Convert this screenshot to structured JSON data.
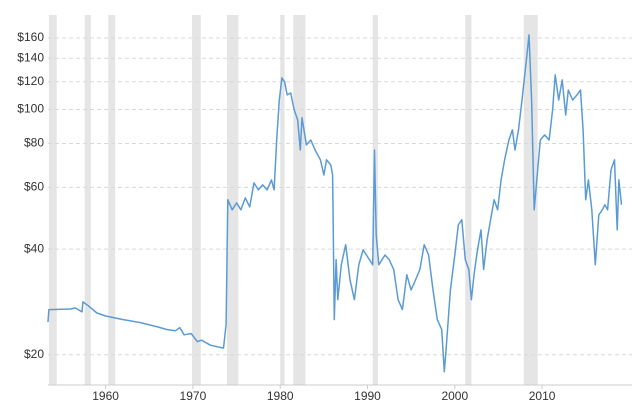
{
  "chart_data": {
    "type": "line",
    "color": "#5b9bd5",
    "recession_color": "#e5e5e5",
    "log_scale": true,
    "grid": true,
    "xlim": [
      1953.4,
      2020.3
    ],
    "xticks": [
      1960,
      1970,
      1980,
      1990,
      2000,
      2010
    ],
    "ylim": [
      16.4,
      186
    ],
    "yticks": [
      {
        "value": 20,
        "label": "$20"
      },
      {
        "value": 40,
        "label": "$40"
      },
      {
        "value": 60,
        "label": "$60"
      },
      {
        "value": 80,
        "label": "$80"
      },
      {
        "value": 100,
        "label": "$100"
      },
      {
        "value": 120,
        "label": "$120"
      },
      {
        "value": 140,
        "label": "$140"
      },
      {
        "value": 160,
        "label": "$160"
      }
    ],
    "recessions": [
      [
        1953.5,
        1954.4
      ],
      [
        1957.6,
        1958.3
      ],
      [
        1960.3,
        1961.1
      ],
      [
        1969.9,
        1970.9
      ],
      [
        1973.9,
        1975.2
      ],
      [
        1980.0,
        1980.5
      ],
      [
        1981.5,
        1982.9
      ],
      [
        1990.6,
        1991.2
      ],
      [
        2001.2,
        2001.9
      ],
      [
        2007.9,
        2009.5
      ]
    ],
    "x": [
      1953.4,
      1953.5,
      1956.0,
      1956.5,
      1957.3,
      1957.4,
      1958.0,
      1959.0,
      1960.0,
      1962.0,
      1964.0,
      1966.0,
      1967.0,
      1968.0,
      1968.5,
      1969.0,
      1969.8,
      1970.5,
      1971.0,
      1972.0,
      1973.5,
      1973.8,
      1974.0,
      1974.5,
      1975.0,
      1975.5,
      1976.0,
      1976.5,
      1977.0,
      1977.5,
      1978.0,
      1978.5,
      1979.0,
      1979.3,
      1979.6,
      1979.9,
      1980.2,
      1980.5,
      1980.8,
      1981.2,
      1981.6,
      1982.0,
      1982.3,
      1982.5,
      1983.0,
      1983.5,
      1984.0,
      1984.3,
      1984.6,
      1985.0,
      1985.3,
      1985.8,
      1986.0,
      1986.2,
      1986.4,
      1986.6,
      1987.0,
      1987.5,
      1988.0,
      1988.5,
      1989.0,
      1989.5,
      1990.6,
      1990.8,
      1991.0,
      1991.3,
      1992.0,
      1992.5,
      1993.0,
      1993.5,
      1994.0,
      1994.5,
      1995.0,
      1995.5,
      1996.0,
      1996.5,
      1997.0,
      1997.5,
      1998.0,
      1998.5,
      1998.8,
      1999.0,
      1999.5,
      2000.0,
      2000.4,
      2000.8,
      2001.2,
      2001.6,
      2001.9,
      2002.2,
      2002.6,
      2003.0,
      2003.3,
      2003.7,
      2004.0,
      2004.5,
      2004.9,
      2005.3,
      2005.7,
      2006.2,
      2006.6,
      2006.9,
      2007.3,
      2007.7,
      2008.2,
      2008.5,
      2008.8,
      2009.1,
      2009.4,
      2009.8,
      2010.3,
      2010.8,
      2011.2,
      2011.5,
      2011.9,
      2012.3,
      2012.7,
      2013.0,
      2013.5,
      2014.0,
      2014.4,
      2014.7,
      2015.0,
      2015.3,
      2015.7,
      2016.1,
      2016.5,
      2016.9,
      2017.2,
      2017.5,
      2017.9,
      2018.3,
      2018.6,
      2018.8,
      2019.1
    ],
    "values": [
      24.8,
      26.9,
      27.0,
      27.2,
      26.5,
      28.3,
      27.6,
      26.3,
      25.8,
      25.2,
      24.7,
      24.0,
      23.6,
      23.4,
      23.9,
      22.8,
      23.0,
      21.8,
      22.0,
      21.3,
      20.9,
      24.4,
      55.3,
      51.8,
      54.2,
      51.8,
      56.0,
      52.8,
      61.8,
      59.0,
      61.0,
      59.0,
      63.0,
      59.0,
      81.9,
      106.5,
      123.1,
      119.9,
      110.1,
      111.5,
      99.8,
      93.4,
      76.7,
      94.7,
      79.3,
      81.9,
      76.7,
      74.3,
      71.9,
      65.1,
      71.9,
      69.5,
      65.1,
      25.2,
      37.3,
      28.7,
      36.1,
      41.2,
      32.7,
      28.7,
      36.1,
      39.8,
      36.1,
      76.7,
      43.9,
      36.1,
      38.5,
      37.3,
      35.0,
      28.7,
      26.9,
      33.8,
      30.6,
      32.7,
      35.0,
      41.2,
      38.5,
      30.6,
      25.2,
      23.6,
      17.9,
      20.7,
      30.6,
      38.5,
      46.9,
      48.5,
      37.3,
      35.0,
      28.7,
      33.8,
      39.8,
      45.4,
      35.0,
      42.5,
      46.9,
      55.3,
      51.8,
      63.0,
      71.9,
      81.9,
      87.5,
      76.7,
      87.5,
      106.5,
      138.5,
      163.2,
      106.5,
      51.8,
      63.0,
      81.9,
      84.7,
      81.9,
      99.8,
      125.5,
      106.5,
      121.5,
      96.5,
      113.7,
      106.5,
      110.1,
      113.7,
      87.5,
      55.3,
      63.0,
      51.8,
      36.1,
      50.1,
      51.8,
      53.5,
      51.8,
      67.3,
      71.9,
      45.4,
      63.0,
      53.5
    ]
  }
}
